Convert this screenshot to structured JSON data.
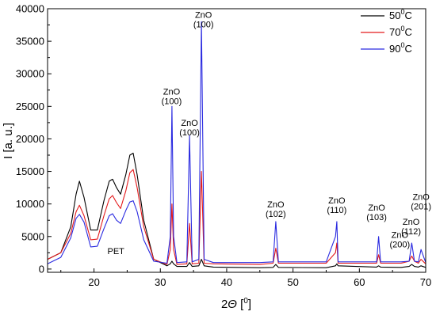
{
  "chart_data": {
    "type": "line",
    "xlabel": "2Θ [°]",
    "xlabel_parts": {
      "main": "2",
      "symbol": "Θ",
      "open": " [",
      "degree": "0",
      "close": "]"
    },
    "ylabel": "I [a. u.]",
    "xlim": [
      13,
      70
    ],
    "ylim": [
      -500,
      40000
    ],
    "xticks": [
      20,
      30,
      40,
      50,
      60,
      70
    ],
    "yticks": [
      0,
      5000,
      10000,
      15000,
      20000,
      25000,
      30000,
      35000,
      40000
    ],
    "grid": false,
    "legend_position": "top-right",
    "series": [
      {
        "name": "50°C",
        "legend_parts": {
          "value": "50",
          "degree": "0",
          "unit": "C"
        },
        "color": "#000000",
        "x": [
          13.0,
          15.0,
          16.5,
          17.3,
          17.8,
          18.5,
          19.5,
          20.5,
          21.5,
          22.3,
          22.8,
          23.4,
          24.0,
          24.8,
          25.4,
          25.9,
          26.5,
          27.5,
          29.0,
          31.0,
          31.5,
          31.75,
          32.0,
          32.5,
          34.0,
          34.4,
          34.8,
          35.8,
          36.2,
          36.6,
          38.0,
          45.0,
          47.0,
          47.4,
          47.8,
          55.0,
          56.4,
          56.6,
          56.8,
          62.6,
          62.9,
          63.2,
          66.3,
          67.5,
          67.9,
          68.3,
          68.9,
          69.3,
          70.0
        ],
        "y": [
          1500,
          2500,
          6500,
          11500,
          13500,
          11000,
          6000,
          6000,
          10500,
          13500,
          13800,
          12500,
          11500,
          14500,
          17500,
          17800,
          14500,
          7500,
          1500,
          500,
          800,
          1200,
          800,
          400,
          400,
          1000,
          400,
          500,
          1500,
          500,
          300,
          200,
          250,
          700,
          250,
          200,
          500,
          800,
          500,
          300,
          500,
          300,
          250,
          400,
          700,
          400,
          300,
          500,
          250
        ]
      },
      {
        "name": "70°C",
        "legend_parts": {
          "value": "70",
          "degree": "0",
          "unit": "C"
        },
        "color": "#e41a1c",
        "x": [
          13.0,
          15.0,
          16.5,
          17.3,
          17.8,
          18.5,
          19.5,
          20.5,
          21.5,
          22.3,
          22.8,
          23.4,
          24.0,
          24.8,
          25.4,
          25.9,
          26.5,
          27.5,
          29.0,
          31.0,
          31.5,
          31.75,
          32.0,
          32.5,
          34.0,
          34.4,
          34.8,
          35.8,
          36.2,
          36.6,
          38.0,
          45.0,
          47.0,
          47.4,
          47.8,
          55.0,
          56.4,
          56.6,
          56.8,
          62.6,
          62.9,
          63.2,
          66.3,
          67.5,
          67.9,
          68.3,
          68.9,
          69.3,
          70.0
        ],
        "y": [
          1500,
          2500,
          5500,
          8800,
          9800,
          8200,
          4500,
          4600,
          8200,
          10800,
          11300,
          10200,
          9300,
          12000,
          14800,
          15300,
          12500,
          6500,
          1500,
          700,
          3000,
          10000,
          3000,
          700,
          800,
          7000,
          800,
          900,
          15000,
          900,
          800,
          700,
          900,
          3200,
          900,
          900,
          2500,
          4000,
          900,
          900,
          2200,
          900,
          900,
          1200,
          2000,
          1200,
          900,
          1500,
          800
        ]
      },
      {
        "name": "90°C",
        "legend_parts": {
          "value": "90",
          "degree": "0",
          "unit": "C"
        },
        "color": "#2a2ae0",
        "x": [
          13.0,
          15.0,
          16.5,
          17.3,
          17.8,
          18.5,
          19.5,
          20.5,
          21.5,
          22.3,
          22.8,
          23.4,
          24.0,
          24.8,
          25.4,
          25.9,
          26.5,
          27.5,
          29.0,
          31.0,
          31.5,
          31.75,
          32.0,
          32.5,
          34.0,
          34.4,
          34.8,
          35.8,
          36.2,
          36.6,
          38.0,
          45.0,
          47.0,
          47.4,
          47.8,
          55.0,
          56.4,
          56.6,
          56.8,
          62.6,
          62.9,
          63.2,
          66.3,
          67.5,
          67.9,
          68.3,
          68.9,
          69.3,
          70.0
        ],
        "y": [
          800,
          1800,
          4800,
          7800,
          8400,
          7200,
          3400,
          3500,
          6200,
          8200,
          8500,
          7500,
          7000,
          9000,
          10300,
          10500,
          8800,
          4500,
          1200,
          900,
          5000,
          25000,
          5000,
          1000,
          1100,
          20500,
          1100,
          1500,
          38000,
          1500,
          1000,
          1000,
          1100,
          7300,
          1100,
          1100,
          5000,
          7300,
          1100,
          1100,
          5000,
          1100,
          1100,
          1200,
          4000,
          1200,
          1100,
          3000,
          1000
        ]
      }
    ],
    "annotations": [
      {
        "lines": [
          "ZnO",
          "(100)"
        ],
        "x": 36.5,
        "y": 38600
      },
      {
        "lines": [
          "ZnO",
          "(100)"
        ],
        "x": 31.7,
        "y": 26800
      },
      {
        "lines": [
          "ZnO",
          "(100)"
        ],
        "x": 34.4,
        "y": 22000
      },
      {
        "lines": [
          "PET"
        ],
        "x": 23.3,
        "y": 2300
      },
      {
        "lines": [
          "ZnO",
          "(102)"
        ],
        "x": 47.4,
        "y": 9500
      },
      {
        "lines": [
          "ZnO",
          "(110)"
        ],
        "x": 56.6,
        "y": 10100
      },
      {
        "lines": [
          "ZnO",
          "(103)"
        ],
        "x": 62.6,
        "y": 9000
      },
      {
        "lines": [
          "ZnO",
          "(200)"
        ],
        "x": 66.1,
        "y": 4800
      },
      {
        "lines": [
          "ZnO",
          "(112)"
        ],
        "x": 67.8,
        "y": 6800
      },
      {
        "lines": [
          "ZnO",
          "(201)"
        ],
        "x": 69.3,
        "y": 10600
      }
    ]
  }
}
